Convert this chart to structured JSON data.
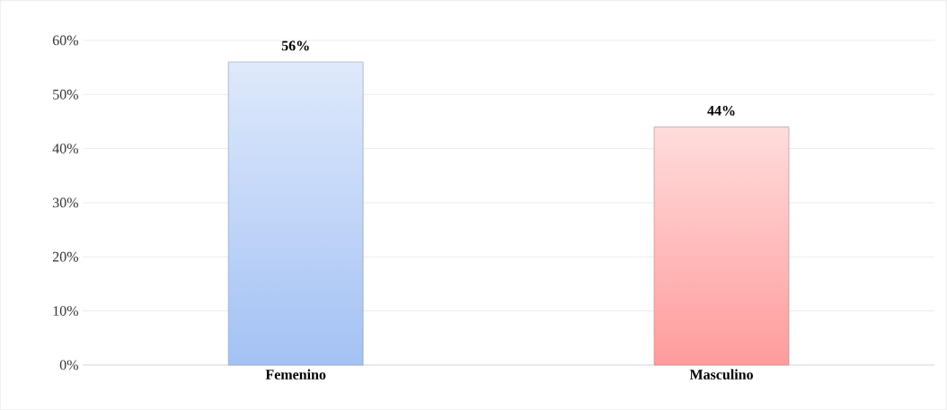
{
  "chart_data": {
    "type": "bar",
    "categories": [
      "Femenino",
      "Masculino"
    ],
    "values": [
      56,
      44
    ],
    "colors": [
      "#a4c2f4",
      "#ff9c9c"
    ],
    "value_labels": [
      "56%",
      "44%"
    ],
    "ylim": [
      0,
      60
    ],
    "yticks": [
      {
        "value": 0,
        "label": "0%"
      },
      {
        "value": 10,
        "label": "10%"
      },
      {
        "value": 20,
        "label": "20%"
      },
      {
        "value": 30,
        "label": "30%"
      },
      {
        "value": 40,
        "label": "40%"
      },
      {
        "value": 50,
        "label": "50%"
      },
      {
        "value": 60,
        "label": "60%"
      }
    ],
    "grid": "y"
  }
}
